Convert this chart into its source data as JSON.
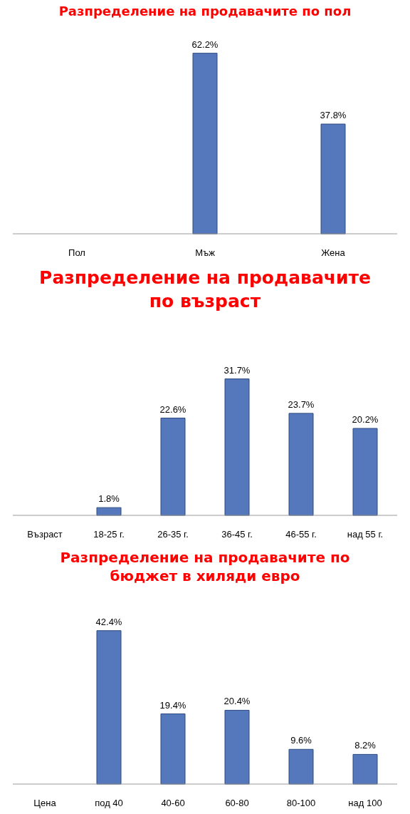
{
  "chart_data": [
    {
      "type": "bar",
      "title": "Разпределение на продавачите по пол",
      "categories": [
        "Пол",
        "Мъж",
        "Жена"
      ],
      "values": [
        null,
        62.2,
        37.8
      ],
      "value_labels": [
        null,
        "62.2%",
        "37.8%"
      ],
      "color": "#5577bb"
    },
    {
      "type": "bar",
      "title": "Разпределение на продавачите по възраст",
      "categories": [
        "Възраст",
        "18-25 г.",
        "26-35 г.",
        "36-45 г.",
        "46-55 г.",
        "над 55 г."
      ],
      "values": [
        null,
        1.8,
        22.6,
        31.7,
        23.7,
        20.2
      ],
      "value_labels": [
        null,
        "1.8%",
        "22.6%",
        "31.7%",
        "23.7%",
        "20.2%"
      ],
      "color": "#5577bb"
    },
    {
      "type": "bar",
      "title": "Разпределение на продавачите по бюджет в хиляди евро",
      "categories": [
        "Цена",
        "под 40",
        "40-60",
        "60-80",
        "80-100",
        "над 100"
      ],
      "values": [
        null,
        42.4,
        19.4,
        20.4,
        9.6,
        8.2
      ],
      "value_labels": [
        null,
        "42.4%",
        "19.4%",
        "20.4%",
        "9.6%",
        "8.2%"
      ],
      "color": "#5577bb"
    }
  ]
}
